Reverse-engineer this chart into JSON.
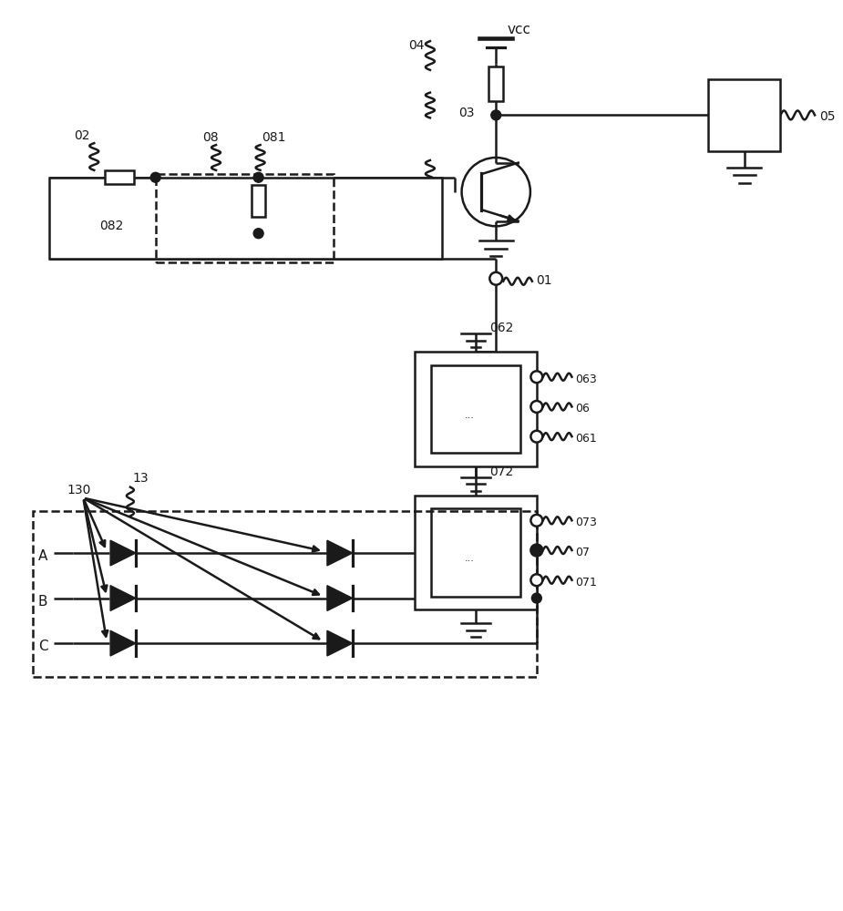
{
  "bg_color": "#ffffff",
  "line_color": "#1a1a1a",
  "lw": 1.8,
  "fig_width": 9.25,
  "fig_height": 10.0,
  "labels": {
    "vcc": "vcc",
    "01": "01",
    "02": "02",
    "03": "03",
    "04": "04",
    "05": "05",
    "06": "06",
    "061": "061",
    "062": "062",
    "063": "063",
    "07": "07",
    "071": "071",
    "072": "072",
    "073": "073",
    "08": "08",
    "081": "081",
    "082": "082",
    "13": "13",
    "130": "130",
    "A": "A",
    "B": "B",
    "C": "C"
  }
}
